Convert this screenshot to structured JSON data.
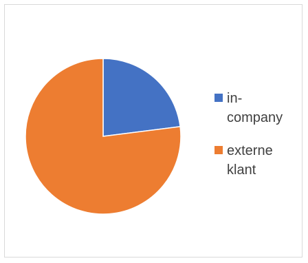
{
  "chart_data": {
    "type": "pie",
    "title": "",
    "categories": [
      "in-company",
      "externe klant"
    ],
    "values": [
      23,
      77
    ],
    "colors": [
      "#4472c4",
      "#ed7d31"
    ],
    "legend_position": "right",
    "legend_lines": [
      [
        "in-",
        "company"
      ],
      [
        "externe",
        "klant"
      ]
    ]
  }
}
